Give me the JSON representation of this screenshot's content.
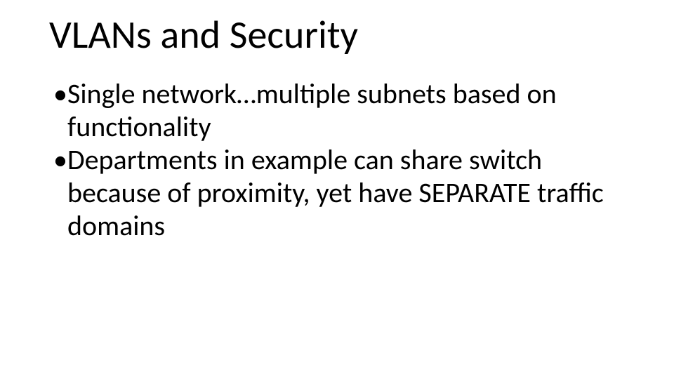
{
  "slide": {
    "title": "VLANs and Security",
    "title_fontsize": 56,
    "title_color": "#000000",
    "bullets": [
      "Single network…multiple subnets based on functionality",
      "Departments in example can share switch because of proximity, yet have SEPARATE traffic domains"
    ],
    "bullet_fontsize": 40,
    "bullet_color": "#000000",
    "background_color": "#ffffff",
    "font_family": "Calibri"
  }
}
